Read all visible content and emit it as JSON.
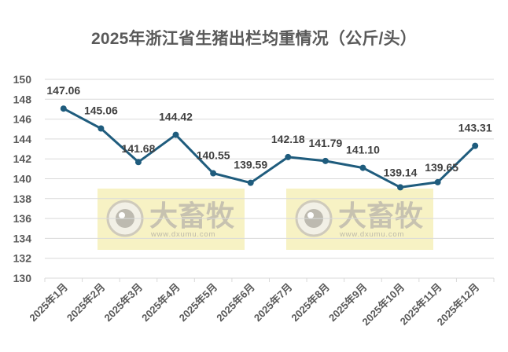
{
  "title": "2025年浙江省生猪出栏均重情况（公斤/头）",
  "colors": {
    "line": "#1f5c7d",
    "grid": "#d9d9d9",
    "text": "#595959",
    "watermark_bg": "#f7f1c1"
  },
  "watermark": {
    "brand": "大畜牧",
    "url": "www.dxumu.com",
    "icon": "eye-logo-icon"
  },
  "chart_data": {
    "type": "line",
    "title": "2025年浙江省生猪出栏均重情况（公斤/头）",
    "xlabel": "",
    "ylabel": "",
    "categories": [
      "2025年1月",
      "2025年2月",
      "2025年3月",
      "2025年4月",
      "2025年5月",
      "2025年6月",
      "2025年7月",
      "2025年8月",
      "2025年9月",
      "2025年10月",
      "2025年11月",
      "2025年12月"
    ],
    "series": [
      {
        "name": "出栏均重",
        "values": [
          147.06,
          145.06,
          141.68,
          144.42,
          140.55,
          139.59,
          142.18,
          141.79,
          141.1,
          139.14,
          139.65,
          143.31
        ]
      }
    ],
    "data_labels": [
      "147.06",
      "145.06",
      "141.68",
      "144.42",
      "140.55",
      "139.59",
      "142.18",
      "141.79",
      "141.10",
      "139.14",
      "139.65",
      "143.31"
    ],
    "ylim": [
      130,
      150
    ],
    "yticks": [
      130,
      132,
      134,
      136,
      138,
      140,
      142,
      144,
      146,
      148,
      150
    ],
    "grid": true,
    "legend": "none"
  }
}
